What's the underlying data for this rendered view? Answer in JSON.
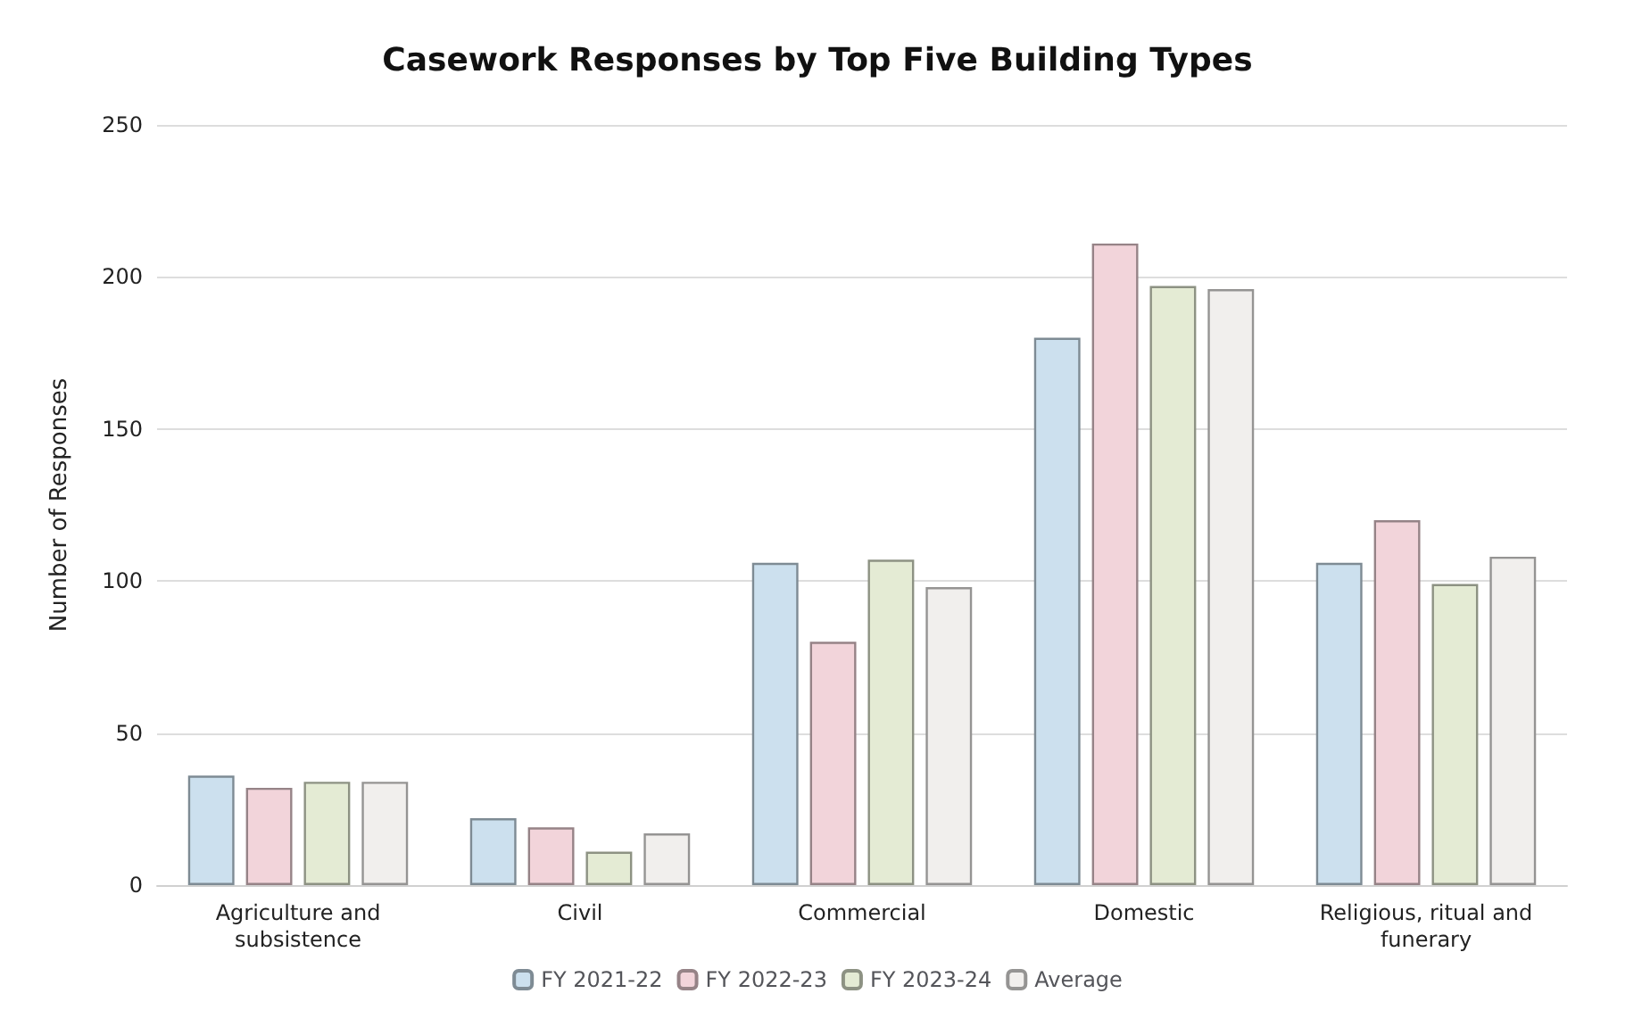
{
  "chart_data": {
    "type": "bar",
    "title": "Casework Responses by Top Five Building Types",
    "ylabel": "Number of Responses",
    "categories": [
      "Agriculture and\nsubsistence",
      "Civil",
      "Commercial",
      "Domestic",
      "Religious, ritual and\nfunerary"
    ],
    "series": [
      {
        "name": "FY 2021-22",
        "color": "#cce0ee",
        "values": [
          36,
          22,
          106,
          180,
          106
        ]
      },
      {
        "name": "FY 2022-23",
        "color": "#f2d4da",
        "values": [
          32,
          19,
          80,
          211,
          120
        ]
      },
      {
        "name": "FY 2023-24",
        "color": "#e4ebd4",
        "values": [
          34,
          11,
          107,
          197,
          99
        ]
      },
      {
        "name": "Average",
        "color": "#f1efed",
        "values": [
          34,
          17,
          98,
          196,
          108
        ]
      }
    ],
    "ylim": [
      0,
      250
    ],
    "yticks": [
      0,
      50,
      100,
      150,
      200,
      250
    ],
    "grid": "y",
    "legend": "bottom"
  }
}
